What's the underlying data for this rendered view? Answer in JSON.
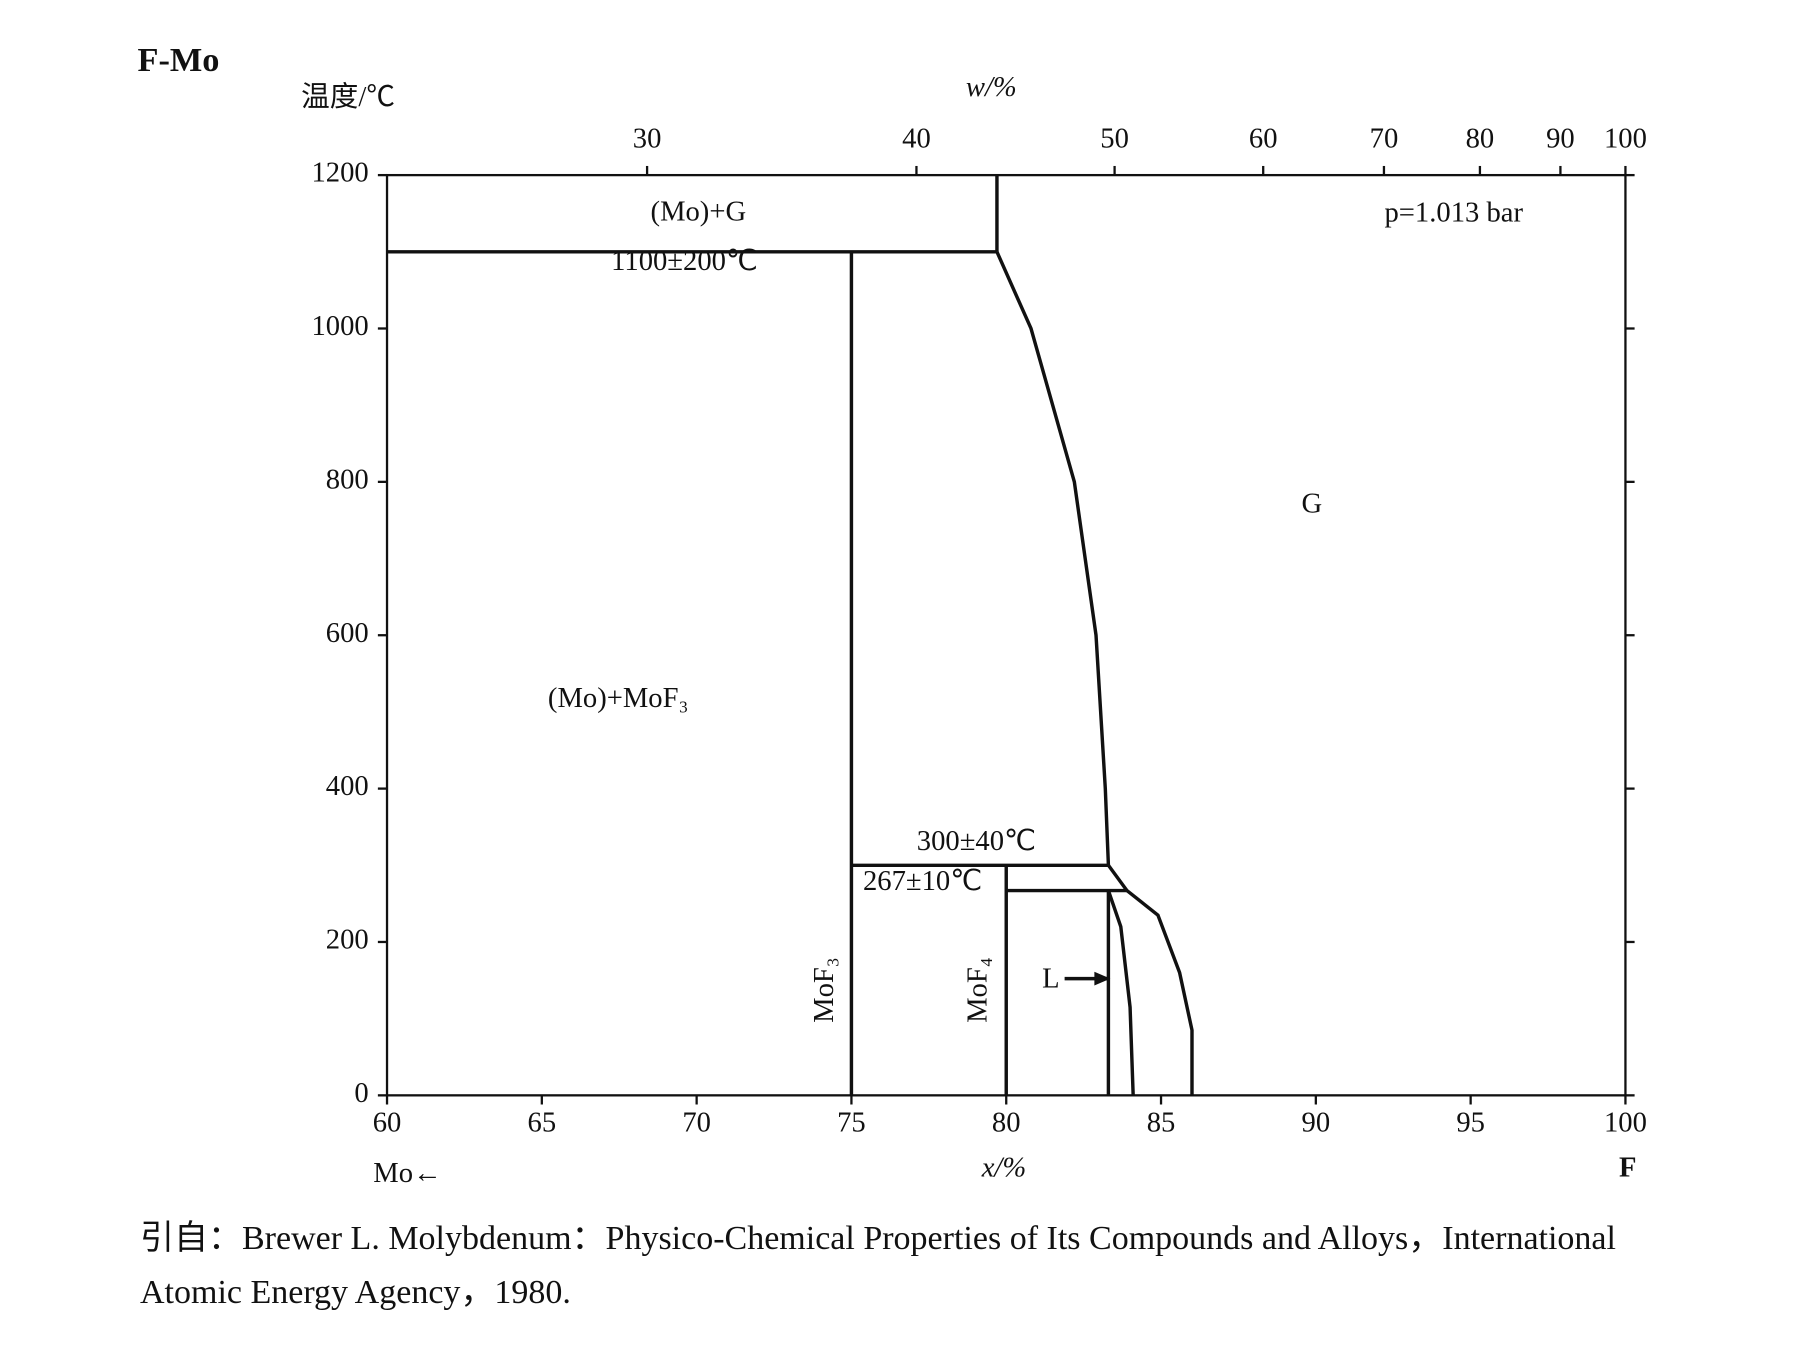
{
  "chart_data": {
    "type": "line",
    "title": "F-Mo",
    "y_label": "温度/℃",
    "x_label": "x/%",
    "x2_label": "w/%",
    "x_left_label": "Mo←",
    "x_right_label": "F",
    "xlim": [
      60,
      100
    ],
    "ylim": [
      0,
      1200
    ],
    "xticks": [
      60,
      65,
      70,
      75,
      80,
      85,
      90,
      95,
      100
    ],
    "yticks": [
      0,
      200,
      400,
      600,
      800,
      1000,
      1200
    ],
    "x2ticks": [
      {
        "value": 68.4,
        "label": "30"
      },
      {
        "value": 77.1,
        "label": "40"
      },
      {
        "value": 83.5,
        "label": "50"
      },
      {
        "value": 88.3,
        "label": "60"
      },
      {
        "value": 92.2,
        "label": "70"
      },
      {
        "value": 95.3,
        "label": "80"
      },
      {
        "value": 97.9,
        "label": "90"
      },
      {
        "value": 100,
        "label": "100"
      }
    ],
    "grid": false,
    "color": "#111111",
    "series": [
      {
        "x": [
          60,
          79.7
        ],
        "values": [
          1100,
          1100
        ]
      },
      {
        "x": [
          79.7,
          79.7
        ],
        "values": [
          1100,
          1200
        ]
      },
      {
        "x": [
          75,
          75
        ],
        "values": [
          1100,
          0
        ]
      },
      {
        "x": [
          75,
          83.3
        ],
        "values": [
          300,
          300
        ]
      },
      {
        "x": [
          79.7,
          80.8,
          82.2,
          82.9,
          83.2,
          83.3
        ],
        "values": [
          1100,
          1000,
          800,
          600,
          400,
          300
        ]
      },
      {
        "x": [
          80,
          80
        ],
        "values": [
          300,
          0
        ]
      },
      {
        "x": [
          80,
          83.9
        ],
        "values": [
          267,
          267
        ]
      },
      {
        "x": [
          83.3,
          83.9,
          84.9,
          85.6,
          86.0,
          86.0
        ],
        "values": [
          300,
          267,
          235,
          160,
          85,
          0
        ]
      },
      {
        "x": [
          83.3,
          83.3
        ],
        "values": [
          267,
          0
        ]
      },
      {
        "x": [
          83.3,
          83.7,
          84.0,
          84.1
        ],
        "values": [
          267,
          220,
          115,
          0
        ]
      }
    ],
    "annotations": [
      "(Mo)+G",
      "1100±200℃",
      "p=1.013 bar",
      "G",
      "(Mo)+MoF₃",
      "300±40℃",
      "267±10℃",
      "MoF₃",
      "MoF₄",
      "L"
    ],
    "source": [
      "引自：Brewer L.  Molybdenum：Physico-Chemical Properties of Its Compounds and Alloys，International",
      "Atomic Energy Agency，1980."
    ]
  }
}
